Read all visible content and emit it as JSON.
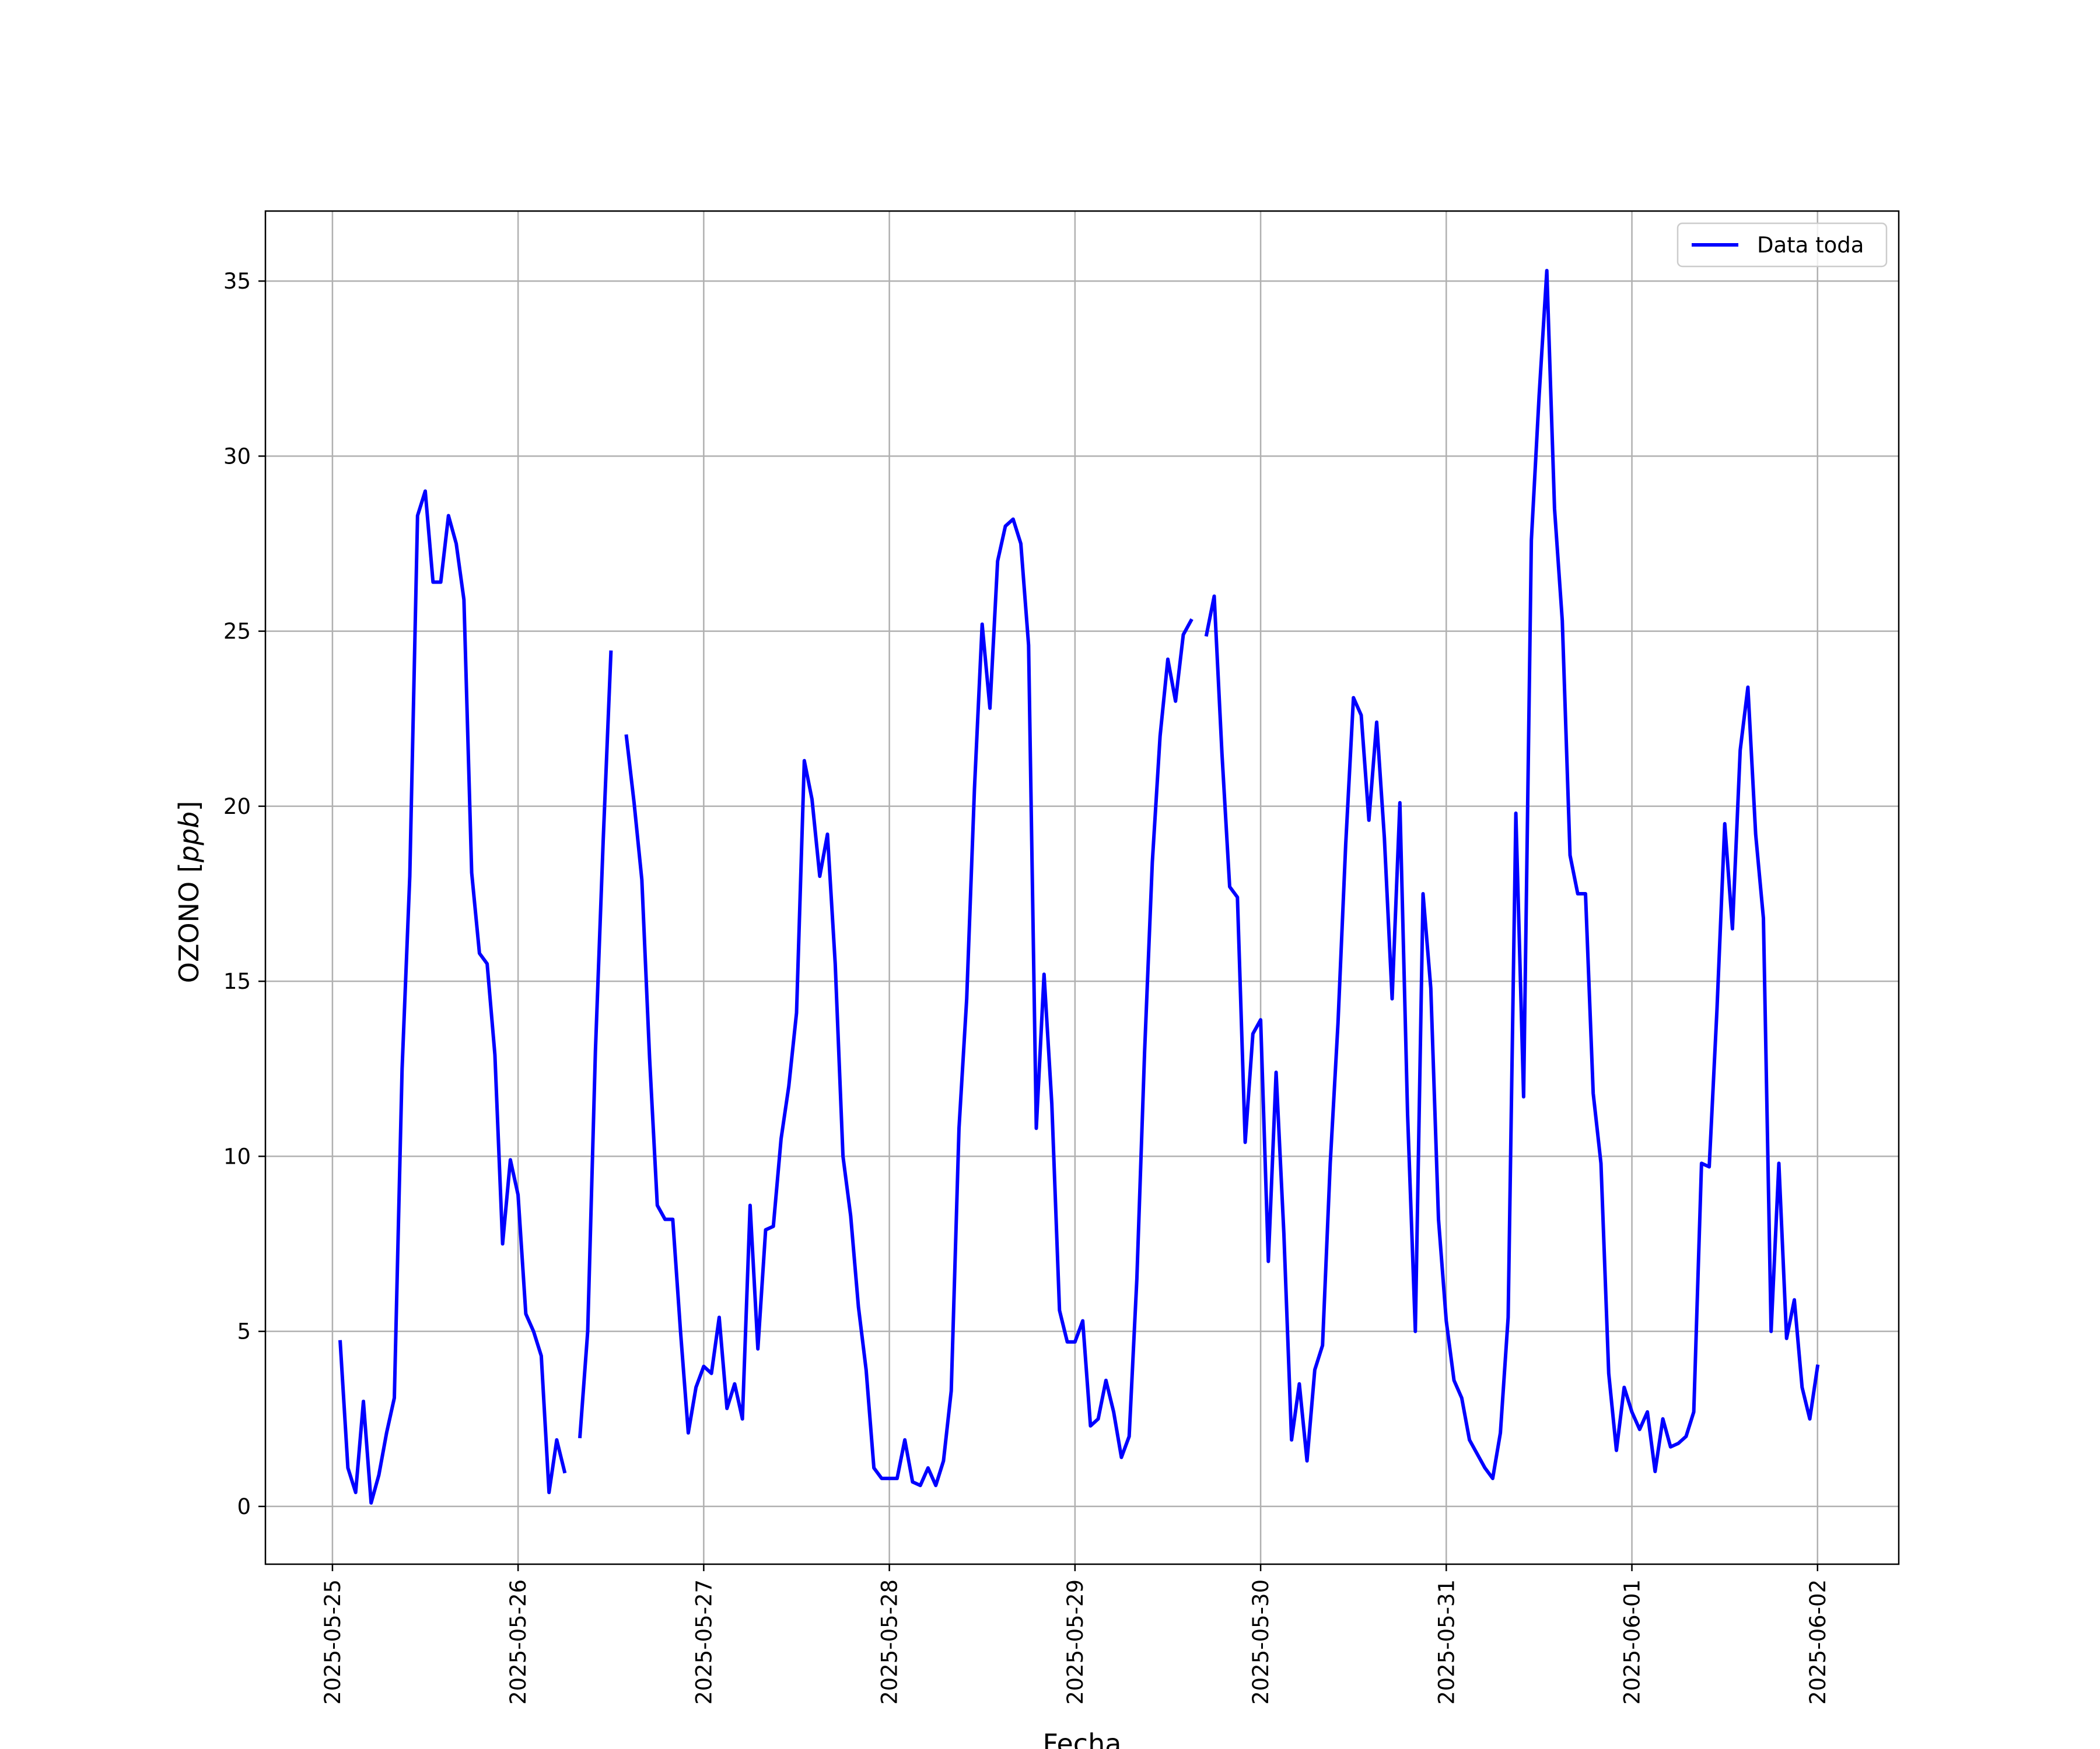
{
  "chart_data": {
    "type": "line",
    "title": "",
    "xlabel": "Fecha",
    "ylabel": "OZONO [ppb]",
    "ylabel_main": "OZONO [",
    "ylabel_unit": "ppb",
    "ylabel_close": "]",
    "x_ticks": [
      "2025-05-25",
      "2025-05-26",
      "2025-05-27",
      "2025-05-28",
      "2025-05-29",
      "2025-05-30",
      "2025-05-31",
      "2025-06-01",
      "2025-06-02"
    ],
    "y_ticks": [
      0,
      5,
      10,
      15,
      20,
      25,
      30,
      35
    ],
    "xlim": [
      "2025-05-24T15:20",
      "2025-06-02T10:30"
    ],
    "ylim": [
      -1.65,
      37
    ],
    "grid": true,
    "legend": {
      "position": "top-right",
      "entries": [
        "Data toda"
      ]
    },
    "series": [
      {
        "name": "Data toda",
        "color": "#0000ff",
        "segments": [
          [
            [
              "2025-05-25T01:00",
              4.7
            ],
            [
              "2025-05-25T02:00",
              1.1
            ],
            [
              "2025-05-25T03:00",
              0.4
            ],
            [
              "2025-05-25T04:00",
              3.0
            ],
            [
              "2025-05-25T05:00",
              0.1
            ],
            [
              "2025-05-25T06:00",
              0.9
            ],
            [
              "2025-05-25T07:00",
              2.1
            ],
            [
              "2025-05-25T08:00",
              3.1
            ],
            [
              "2025-05-25T09:00",
              12.5
            ],
            [
              "2025-05-25T10:00",
              18.0
            ],
            [
              "2025-05-25T11:00",
              28.3
            ],
            [
              "2025-05-25T12:00",
              29.0
            ],
            [
              "2025-05-25T13:00",
              26.4
            ],
            [
              "2025-05-25T14:00",
              26.4
            ],
            [
              "2025-05-25T15:00",
              28.3
            ],
            [
              "2025-05-25T16:00",
              27.5
            ],
            [
              "2025-05-25T17:00",
              25.9
            ],
            [
              "2025-05-25T18:00",
              18.1
            ],
            [
              "2025-05-25T19:00",
              15.8
            ],
            [
              "2025-05-25T20:00",
              15.5
            ],
            [
              "2025-05-25T21:00",
              12.9
            ],
            [
              "2025-05-25T22:00",
              7.5
            ],
            [
              "2025-05-25T23:00",
              9.9
            ],
            [
              "2025-05-26T00:00",
              8.9
            ],
            [
              "2025-05-26T01:00",
              5.5
            ],
            [
              "2025-05-26T02:00",
              5.0
            ],
            [
              "2025-05-26T03:00",
              4.3
            ],
            [
              "2025-05-26T04:00",
              0.4
            ],
            [
              "2025-05-26T05:00",
              1.9
            ],
            [
              "2025-05-26T06:00",
              1.0
            ]
          ],
          [
            [
              "2025-05-26T08:00",
              2.0
            ],
            [
              "2025-05-26T09:00",
              5.0
            ],
            [
              "2025-05-26T10:00",
              13.0
            ],
            [
              "2025-05-26T11:00",
              19.0
            ],
            [
              "2025-05-26T12:00",
              24.4
            ]
          ],
          [
            [
              "2025-05-26T14:00",
              22.0
            ],
            [
              "2025-05-26T15:00",
              20.1
            ],
            [
              "2025-05-26T16:00",
              17.9
            ],
            [
              "2025-05-26T17:00",
              12.8
            ],
            [
              "2025-05-26T18:00",
              8.6
            ],
            [
              "2025-05-26T19:00",
              8.2
            ],
            [
              "2025-05-26T20:00",
              8.2
            ],
            [
              "2025-05-26T21:00",
              5.0
            ],
            [
              "2025-05-26T22:00",
              2.1
            ],
            [
              "2025-05-26T23:00",
              3.4
            ],
            [
              "2025-05-27T00:00",
              4.0
            ],
            [
              "2025-05-27T01:00",
              3.8
            ],
            [
              "2025-05-27T02:00",
              5.4
            ],
            [
              "2025-05-27T03:00",
              2.8
            ],
            [
              "2025-05-27T04:00",
              3.5
            ],
            [
              "2025-05-27T05:00",
              2.5
            ],
            [
              "2025-05-27T06:00",
              8.6
            ],
            [
              "2025-05-27T07:00",
              4.5
            ],
            [
              "2025-05-27T08:00",
              7.9
            ],
            [
              "2025-05-27T09:00",
              8.0
            ],
            [
              "2025-05-27T10:00",
              10.5
            ],
            [
              "2025-05-27T11:00",
              12.0
            ],
            [
              "2025-05-27T12:00",
              14.1
            ],
            [
              "2025-05-27T13:00",
              21.3
            ],
            [
              "2025-05-27T14:00",
              20.2
            ],
            [
              "2025-05-27T15:00",
              18.0
            ],
            [
              "2025-05-27T16:00",
              19.2
            ],
            [
              "2025-05-27T17:00",
              15.5
            ],
            [
              "2025-05-27T18:00",
              10.0
            ],
            [
              "2025-05-27T19:00",
              8.3
            ],
            [
              "2025-05-27T20:00",
              5.7
            ],
            [
              "2025-05-27T21:00",
              3.9
            ],
            [
              "2025-05-27T22:00",
              1.1
            ],
            [
              "2025-05-27T23:00",
              0.8
            ],
            [
              "2025-05-28T00:00",
              0.8
            ],
            [
              "2025-05-28T01:00",
              0.8
            ],
            [
              "2025-05-28T02:00",
              1.9
            ],
            [
              "2025-05-28T03:00",
              0.7
            ],
            [
              "2025-05-28T04:00",
              0.6
            ],
            [
              "2025-05-28T05:00",
              1.1
            ],
            [
              "2025-05-28T06:00",
              0.6
            ],
            [
              "2025-05-28T07:00",
              1.3
            ],
            [
              "2025-05-28T08:00",
              3.3
            ],
            [
              "2025-05-28T09:00",
              10.8
            ],
            [
              "2025-05-28T10:00",
              14.5
            ],
            [
              "2025-05-28T11:00",
              20.5
            ],
            [
              "2025-05-28T12:00",
              25.2
            ],
            [
              "2025-05-28T13:00",
              22.8
            ],
            [
              "2025-05-28T14:00",
              27.0
            ],
            [
              "2025-05-28T15:00",
              28.0
            ],
            [
              "2025-05-28T16:00",
              28.2
            ],
            [
              "2025-05-28T17:00",
              27.5
            ],
            [
              "2025-05-28T18:00",
              24.6
            ],
            [
              "2025-05-28T19:00",
              10.8
            ],
            [
              "2025-05-28T20:00",
              15.2
            ],
            [
              "2025-05-28T21:00",
              11.5
            ],
            [
              "2025-05-28T22:00",
              5.6
            ],
            [
              "2025-05-28T23:00",
              4.7
            ],
            [
              "2025-05-29T00:00",
              4.7
            ],
            [
              "2025-05-29T01:00",
              5.3
            ],
            [
              "2025-05-29T02:00",
              2.3
            ],
            [
              "2025-05-29T03:00",
              2.5
            ],
            [
              "2025-05-29T04:00",
              3.6
            ],
            [
              "2025-05-29T05:00",
              2.7
            ],
            [
              "2025-05-29T06:00",
              1.4
            ],
            [
              "2025-05-29T07:00",
              2.0
            ],
            [
              "2025-05-29T08:00",
              6.5
            ],
            [
              "2025-05-29T09:00",
              13.0
            ],
            [
              "2025-05-29T10:00",
              18.4
            ],
            [
              "2025-05-29T11:00",
              22.0
            ],
            [
              "2025-05-29T12:00",
              24.2
            ],
            [
              "2025-05-29T13:00",
              23.0
            ],
            [
              "2025-05-29T14:00",
              24.9
            ],
            [
              "2025-05-29T15:00",
              25.3
            ]
          ],
          [
            [
              "2025-05-29T17:00",
              24.9
            ],
            [
              "2025-05-29T18:00",
              26.0
            ],
            [
              "2025-05-29T19:00",
              21.5
            ],
            [
              "2025-05-29T20:00",
              17.7
            ],
            [
              "2025-05-29T21:00",
              17.4
            ],
            [
              "2025-05-29T22:00",
              10.4
            ],
            [
              "2025-05-29T23:00",
              13.5
            ],
            [
              "2025-05-30T00:00",
              13.9
            ],
            [
              "2025-05-30T01:00",
              7.0
            ],
            [
              "2025-05-30T02:00",
              12.4
            ],
            [
              "2025-05-30T03:00",
              7.8
            ],
            [
              "2025-05-30T04:00",
              1.9
            ],
            [
              "2025-05-30T05:00",
              3.5
            ],
            [
              "2025-05-30T06:00",
              1.3
            ],
            [
              "2025-05-30T07:00",
              3.9
            ],
            [
              "2025-05-30T08:00",
              4.6
            ],
            [
              "2025-05-30T09:00",
              9.8
            ],
            [
              "2025-05-30T10:00",
              13.8
            ],
            [
              "2025-05-30T11:00",
              18.9
            ],
            [
              "2025-05-30T12:00",
              23.1
            ],
            [
              "2025-05-30T13:00",
              22.6
            ],
            [
              "2025-05-30T14:00",
              19.6
            ],
            [
              "2025-05-30T15:00",
              22.4
            ],
            [
              "2025-05-30T16:00",
              19.1
            ],
            [
              "2025-05-30T17:00",
              14.5
            ],
            [
              "2025-05-30T18:00",
              20.1
            ],
            [
              "2025-05-30T19:00",
              11.2
            ],
            [
              "2025-05-30T20:00",
              5.0
            ],
            [
              "2025-05-30T21:00",
              17.5
            ],
            [
              "2025-05-30T22:00",
              14.8
            ],
            [
              "2025-05-30T23:00",
              8.2
            ],
            [
              "2025-05-31T00:00",
              5.3
            ],
            [
              "2025-05-31T01:00",
              3.6
            ],
            [
              "2025-05-31T02:00",
              3.1
            ],
            [
              "2025-05-31T03:00",
              1.9
            ],
            [
              "2025-05-31T04:00",
              1.5
            ],
            [
              "2025-05-31T05:00",
              1.1
            ],
            [
              "2025-05-31T06:00",
              0.8
            ],
            [
              "2025-05-31T07:00",
              2.1
            ],
            [
              "2025-05-31T08:00",
              5.4
            ],
            [
              "2025-05-31T09:00",
              19.8
            ],
            [
              "2025-05-31T10:00",
              11.7
            ],
            [
              "2025-05-31T11:00",
              27.6
            ],
            [
              "2025-05-31T12:00",
              31.7
            ],
            [
              "2025-05-31T13:00",
              35.3
            ],
            [
              "2025-05-31T14:00",
              28.5
            ],
            [
              "2025-05-31T15:00",
              25.3
            ],
            [
              "2025-05-31T16:00",
              18.6
            ],
            [
              "2025-05-31T17:00",
              17.5
            ],
            [
              "2025-05-31T18:00",
              17.5
            ],
            [
              "2025-05-31T19:00",
              11.8
            ],
            [
              "2025-05-31T20:00",
              9.8
            ],
            [
              "2025-05-31T21:00",
              3.8
            ],
            [
              "2025-05-31T22:00",
              1.6
            ],
            [
              "2025-05-31T23:00",
              3.4
            ],
            [
              "2025-06-01T00:00",
              2.7
            ],
            [
              "2025-06-01T01:00",
              2.2
            ],
            [
              "2025-06-01T02:00",
              2.7
            ],
            [
              "2025-06-01T03:00",
              1.0
            ],
            [
              "2025-06-01T04:00",
              2.5
            ],
            [
              "2025-06-01T05:00",
              1.7
            ],
            [
              "2025-06-01T06:00",
              1.8
            ],
            [
              "2025-06-01T07:00",
              2.0
            ],
            [
              "2025-06-01T08:00",
              2.7
            ],
            [
              "2025-06-01T09:00",
              9.8
            ],
            [
              "2025-06-01T10:00",
              9.7
            ],
            [
              "2025-06-01T11:00",
              14.2
            ],
            [
              "2025-06-01T12:00",
              19.5
            ],
            [
              "2025-06-01T13:00",
              16.5
            ],
            [
              "2025-06-01T14:00",
              21.6
            ],
            [
              "2025-06-01T15:00",
              23.4
            ],
            [
              "2025-06-01T16:00",
              19.2
            ],
            [
              "2025-06-01T17:00",
              16.8
            ],
            [
              "2025-06-01T18:00",
              5.0
            ],
            [
              "2025-06-01T19:00",
              9.8
            ],
            [
              "2025-06-01T20:00",
              4.8
            ],
            [
              "2025-06-01T21:00",
              5.9
            ],
            [
              "2025-06-01T22:00",
              3.4
            ],
            [
              "2025-06-01T23:00",
              2.5
            ],
            [
              "2025-06-02T00:00",
              4.0
            ]
          ]
        ]
      }
    ]
  }
}
